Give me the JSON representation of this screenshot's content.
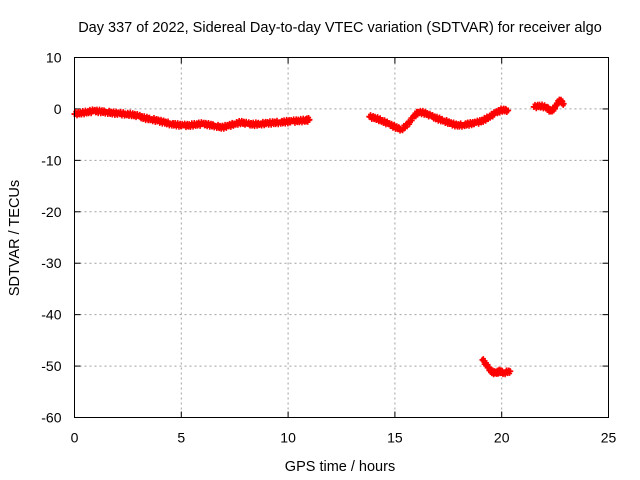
{
  "chart_data": {
    "type": "scatter",
    "title": "Day 337 of 2022, Sidereal Day-to-day VTEC variation (SDTVAR) for receiver algo",
    "xlabel": "GPS time / hours",
    "ylabel": "SDTVAR / TECUs",
    "xlim": [
      0,
      25
    ],
    "ylim": [
      -60,
      10
    ],
    "xticks": [
      0,
      5,
      10,
      15,
      20,
      25
    ],
    "yticks": [
      -60,
      -50,
      -40,
      -30,
      -20,
      -10,
      0,
      10
    ],
    "grid": true,
    "color": "#ff0000",
    "series": [
      {
        "name": "SDTVAR",
        "segments": [
          [
            [
              0.0,
              -1.0
            ],
            [
              0.3,
              -0.8
            ],
            [
              0.6,
              -0.6
            ],
            [
              0.9,
              -0.4
            ],
            [
              1.2,
              -0.5
            ],
            [
              1.5,
              -0.6
            ],
            [
              1.8,
              -0.8
            ],
            [
              2.1,
              -0.9
            ],
            [
              2.4,
              -1.0
            ],
            [
              2.7,
              -1.1
            ],
            [
              3.0,
              -1.4
            ],
            [
              3.3,
              -1.8
            ],
            [
              3.6,
              -2.0
            ],
            [
              3.9,
              -2.3
            ],
            [
              4.2,
              -2.6
            ],
            [
              4.5,
              -2.9
            ],
            [
              4.8,
              -3.1
            ],
            [
              5.1,
              -3.2
            ],
            [
              5.4,
              -3.2
            ],
            [
              5.7,
              -3.0
            ],
            [
              6.0,
              -2.9
            ],
            [
              6.3,
              -3.1
            ],
            [
              6.6,
              -3.3
            ],
            [
              6.9,
              -3.6
            ],
            [
              7.2,
              -3.3
            ],
            [
              7.5,
              -2.9
            ],
            [
              7.8,
              -2.6
            ],
            [
              8.1,
              -2.9
            ],
            [
              8.4,
              -3.0
            ],
            [
              8.7,
              -2.9
            ],
            [
              9.0,
              -2.8
            ],
            [
              9.3,
              -2.7
            ],
            [
              9.6,
              -2.6
            ],
            [
              9.9,
              -2.5
            ],
            [
              10.2,
              -2.4
            ],
            [
              10.5,
              -2.3
            ],
            [
              10.8,
              -2.2
            ],
            [
              11.0,
              -2.1
            ]
          ],
          [
            [
              13.8,
              -1.5
            ],
            [
              14.1,
              -1.8
            ],
            [
              14.4,
              -2.3
            ],
            [
              14.7,
              -2.9
            ],
            [
              15.0,
              -3.5
            ],
            [
              15.3,
              -4.0
            ],
            [
              15.6,
              -3.0
            ],
            [
              15.9,
              -1.4
            ],
            [
              16.1,
              -0.6
            ],
            [
              16.4,
              -0.8
            ],
            [
              16.7,
              -1.4
            ],
            [
              17.0,
              -1.9
            ],
            [
              17.3,
              -2.3
            ],
            [
              17.6,
              -2.8
            ],
            [
              17.9,
              -3.2
            ],
            [
              18.2,
              -3.1
            ],
            [
              18.5,
              -2.9
            ],
            [
              18.8,
              -2.7
            ],
            [
              19.1,
              -2.3
            ],
            [
              19.4,
              -1.6
            ],
            [
              19.7,
              -0.8
            ],
            [
              20.0,
              -0.2
            ],
            [
              20.3,
              -0.3
            ]
          ],
          [
            [
              21.5,
              0.4
            ],
            [
              21.8,
              0.6
            ],
            [
              22.1,
              0.3
            ],
            [
              22.3,
              -0.5
            ],
            [
              22.5,
              0.3
            ],
            [
              22.7,
              1.8
            ],
            [
              22.9,
              1.0
            ]
          ],
          [
            [
              19.1,
              -48.8
            ],
            [
              19.3,
              -49.8
            ],
            [
              19.5,
              -51.0
            ],
            [
              19.7,
              -51.4
            ],
            [
              19.9,
              -51.0
            ],
            [
              20.1,
              -51.3
            ],
            [
              20.4,
              -51.0
            ]
          ]
        ]
      }
    ]
  }
}
